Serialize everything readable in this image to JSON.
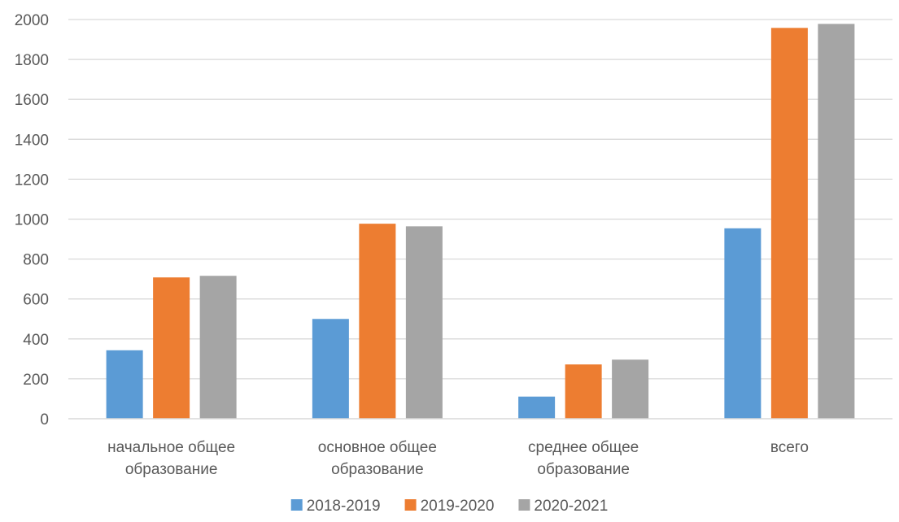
{
  "chart_data": {
    "type": "bar",
    "categories": [
      [
        "начальное общее",
        "образование"
      ],
      [
        "основное общее",
        "образование"
      ],
      [
        "среднее общее",
        "образование"
      ],
      [
        "всего"
      ]
    ],
    "series": [
      {
        "name": "2018-2019",
        "color": "#5B9BD5",
        "values": [
          343,
          500,
          111,
          954
        ]
      },
      {
        "name": "2019-2020",
        "color": "#ED7D31",
        "values": [
          708,
          977,
          272,
          1958
        ]
      },
      {
        "name": "2020-2021",
        "color": "#A5A5A5",
        "values": [
          716,
          964,
          296,
          1978
        ]
      }
    ],
    "ylim": [
      0,
      2000
    ],
    "yticks": [
      0,
      200,
      400,
      600,
      800,
      1000,
      1200,
      1400,
      1600,
      1800,
      2000
    ],
    "grid": true,
    "legend_position": "bottom"
  }
}
